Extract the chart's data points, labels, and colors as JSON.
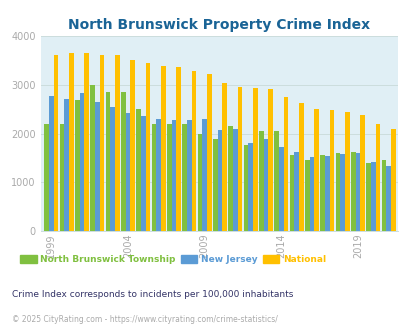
{
  "title": "North Brunswick Property Crime Index",
  "title_color": "#1a6496",
  "years": [
    1999,
    2000,
    2001,
    2002,
    2003,
    2004,
    2005,
    2006,
    2007,
    2008,
    2009,
    2010,
    2011,
    2012,
    2013,
    2014,
    2015,
    2016,
    2017,
    2018,
    2019,
    2020,
    2021
  ],
  "north_brunswick": [
    2200,
    2200,
    2700,
    3000,
    2850,
    2850,
    2500,
    2200,
    2200,
    2200,
    2000,
    1880,
    2150,
    1760,
    2060,
    2050,
    1570,
    1450,
    1570,
    1600,
    1620,
    1400,
    1450
  ],
  "new_jersey": [
    2780,
    2720,
    2830,
    2650,
    2550,
    2420,
    2370,
    2310,
    2280,
    2280,
    2300,
    2080,
    2100,
    1800,
    1900,
    1730,
    1620,
    1530,
    1550,
    1580,
    1610,
    1420,
    1340
  ],
  "national": [
    3620,
    3650,
    3650,
    3610,
    3610,
    3520,
    3460,
    3390,
    3360,
    3290,
    3220,
    3050,
    2960,
    2930,
    2910,
    2750,
    2620,
    2510,
    2480,
    2450,
    2390,
    2200,
    2100
  ],
  "nb_color": "#80c040",
  "nj_color": "#5b9bd5",
  "nat_color": "#ffc000",
  "bg_color": "#e0eff5",
  "ylim": [
    0,
    4000
  ],
  "yticks": [
    0,
    1000,
    2000,
    3000,
    4000
  ],
  "xlabel_ticks": [
    1999,
    2004,
    2009,
    2014,
    2019
  ],
  "legend_labels": [
    "North Brunswick Township",
    "New Jersey",
    "National"
  ],
  "note": "Crime Index corresponds to incidents per 100,000 inhabitants",
  "footer": "© 2025 CityRating.com - https://www.cityrating.com/crime-statistics/",
  "note_color": "#333366",
  "footer_color": "#aaaaaa",
  "grid_color": "#ccdddd",
  "tick_color": "#aaaaaa"
}
